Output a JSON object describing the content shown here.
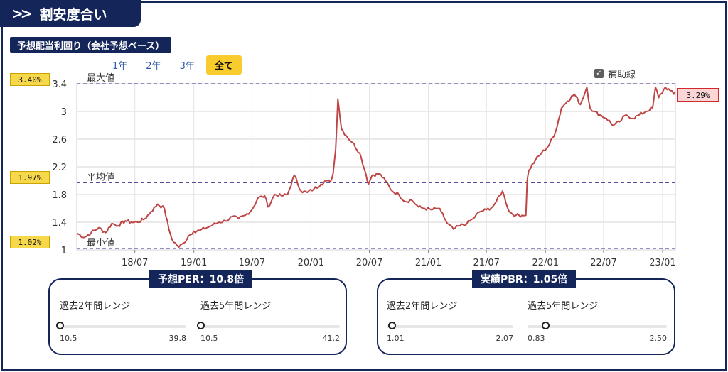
{
  "header": {
    "title": "割安度合い",
    "chevron_icon": "double-chevron-right-icon"
  },
  "chart_title": "予想配当利回り（会社予想ベース）",
  "tabs": [
    {
      "label": "1年",
      "active": false
    },
    {
      "label": "2年",
      "active": false
    },
    {
      "label": "3年",
      "active": false
    },
    {
      "label": "全て",
      "active": true
    }
  ],
  "aux_checkbox": {
    "label": "補助線",
    "checked": true
  },
  "tags": {
    "max": "3.40%",
    "avg": "1.97%",
    "min": "1.02%",
    "current": "3.29%"
  },
  "chart_data": {
    "type": "line",
    "title": "予想配当利回り（会社予想ベース）",
    "xlabel": "",
    "ylabel": "",
    "ylim": [
      1,
      3.4
    ],
    "y_ticks": [
      1,
      1.4,
      1.8,
      2.2,
      2.6,
      3,
      3.4
    ],
    "x_tick_labels": [
      "18/07",
      "19/01",
      "19/07",
      "20/01",
      "20/07",
      "21/01",
      "21/07",
      "22/01",
      "22/07",
      "23/01"
    ],
    "x_tick_dates": [
      "2018-07-01",
      "2019-01-01",
      "2019-07-01",
      "2020-01-01",
      "2020-07-01",
      "2021-01-01",
      "2021-07-01",
      "2022-01-01",
      "2022-07-01",
      "2023-01-01"
    ],
    "x_range": [
      "2018-01-01",
      "2023-02-10"
    ],
    "grid": true,
    "reference_lines": [
      {
        "label": "最大値",
        "value": 3.4
      },
      {
        "label": "平均値",
        "value": 1.97
      },
      {
        "label": "最小値",
        "value": 1.02
      }
    ],
    "color": "#bf4545",
    "series": [
      {
        "x": [
          "2018-01-01",
          "2018-01-25",
          "2018-02-15",
          "2018-03-10",
          "2018-04-01",
          "2018-04-20",
          "2018-05-10",
          "2018-06-01",
          "2018-06-20",
          "2018-07-10",
          "2018-08-01",
          "2018-08-20",
          "2018-09-10",
          "2018-10-01",
          "2018-10-15",
          "2018-10-25",
          "2018-11-15",
          "2018-12-01",
          "2018-12-15",
          "2019-01-01",
          "2019-01-20",
          "2019-02-10",
          "2019-03-01",
          "2019-03-20",
          "2019-04-10",
          "2019-05-01",
          "2019-05-20",
          "2019-06-10",
          "2019-07-01",
          "2019-07-20",
          "2019-08-10",
          "2019-08-20",
          "2019-09-10",
          "2019-10-01",
          "2019-10-20",
          "2019-11-10",
          "2019-12-01",
          "2019-12-20",
          "2020-01-10",
          "2020-02-01",
          "2020-02-20",
          "2020-03-01",
          "2020-03-10",
          "2020-03-18",
          "2020-03-25",
          "2020-04-05",
          "2020-04-20",
          "2020-05-10",
          "2020-06-01",
          "2020-06-20",
          "2020-06-28",
          "2020-07-10",
          "2020-08-01",
          "2020-08-20",
          "2020-09-10",
          "2020-10-01",
          "2020-10-20",
          "2020-11-10",
          "2020-12-01",
          "2020-12-20",
          "2021-01-10",
          "2021-02-01",
          "2021-02-10",
          "2021-03-01",
          "2021-03-20",
          "2021-04-10",
          "2021-05-01",
          "2021-05-20",
          "2021-06-10",
          "2021-07-01",
          "2021-07-20",
          "2021-08-01",
          "2021-08-20",
          "2021-09-10",
          "2021-10-01",
          "2021-10-20",
          "2021-11-01",
          "2021-11-05",
          "2021-11-10",
          "2021-12-01",
          "2021-12-20",
          "2022-01-10",
          "2022-02-01",
          "2022-02-20",
          "2022-03-10",
          "2022-04-01",
          "2022-04-20",
          "2022-05-10",
          "2022-05-20",
          "2022-06-01",
          "2022-06-20",
          "2022-07-10",
          "2022-08-01",
          "2022-08-20",
          "2022-09-10",
          "2022-10-01",
          "2022-10-20",
          "2022-11-10",
          "2022-12-01",
          "2022-12-10",
          "2022-12-20",
          "2023-01-10",
          "2023-01-25",
          "2023-02-05",
          "2023-02-10"
        ],
        "y": [
          1.24,
          1.18,
          1.25,
          1.32,
          1.25,
          1.38,
          1.35,
          1.42,
          1.4,
          1.4,
          1.45,
          1.55,
          1.66,
          1.6,
          1.3,
          1.15,
          1.04,
          1.1,
          1.2,
          1.27,
          1.28,
          1.32,
          1.36,
          1.4,
          1.42,
          1.48,
          1.45,
          1.5,
          1.58,
          1.75,
          1.78,
          1.62,
          1.8,
          1.78,
          1.8,
          2.08,
          1.85,
          1.83,
          1.88,
          1.95,
          2.0,
          1.98,
          2.1,
          2.45,
          3.18,
          2.75,
          2.65,
          2.55,
          2.4,
          2.1,
          1.95,
          2.08,
          2.1,
          2.0,
          1.85,
          1.8,
          1.7,
          1.72,
          1.62,
          1.6,
          1.58,
          1.6,
          1.55,
          1.38,
          1.3,
          1.35,
          1.38,
          1.45,
          1.55,
          1.58,
          1.62,
          1.7,
          1.85,
          1.55,
          1.5,
          1.5,
          1.5,
          2.0,
          2.15,
          2.3,
          2.4,
          2.5,
          2.7,
          3.05,
          3.15,
          3.25,
          3.1,
          3.35,
          3.05,
          3.0,
          2.95,
          2.9,
          2.8,
          2.85,
          2.95,
          2.9,
          2.95,
          3.0,
          3.05,
          3.35,
          3.2,
          3.35,
          3.3,
          3.25,
          3.29
        ]
      }
    ]
  },
  "per_panel": {
    "badge": "予想PER：10.8倍",
    "ranges": [
      {
        "label": "過去2年間レンジ",
        "min": "10.5",
        "max": "39.8",
        "position": 0.0
      },
      {
        "label": "過去5年間レンジ",
        "min": "10.5",
        "max": "41.2",
        "position": 0.0
      }
    ]
  },
  "pbr_panel": {
    "badge": "実績PBR：1.05倍",
    "ranges": [
      {
        "label": "過去2年間レンジ",
        "min": "1.01",
        "max": "2.07",
        "position": 0.04
      },
      {
        "label": "過去5年間レンジ",
        "min": "0.83",
        "max": "2.50",
        "position": 0.13
      }
    ]
  }
}
